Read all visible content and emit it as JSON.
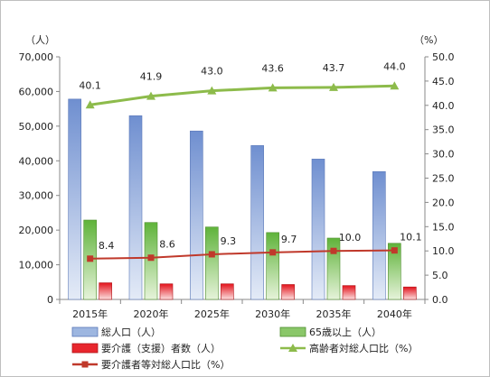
{
  "chart_data": {
    "type": "bar",
    "categories": [
      "2015年",
      "2020年",
      "2025年",
      "2030年",
      "2035年",
      "2040年"
    ],
    "y_left": {
      "unit": "（人）",
      "ylim": [
        0,
        70000
      ],
      "ticks": [
        "0",
        "10,000",
        "20,000",
        "30,000",
        "40,000",
        "50,000",
        "60,000",
        "70,000"
      ]
    },
    "y_right": {
      "unit": "（%）",
      "ylim": [
        0,
        50
      ],
      "ticks": [
        "0.0",
        "5.0",
        "10.0",
        "15.0",
        "20.0",
        "25.0",
        "30.0",
        "35.0",
        "40.0",
        "45.0",
        "50.0"
      ]
    },
    "series": [
      {
        "name": "総人口（人）",
        "kind": "bar",
        "axis": "left",
        "color": "#8eaadb",
        "values": [
          57800,
          53000,
          48600,
          44400,
          40500,
          36900
        ]
      },
      {
        "name": "65歳以上（人）",
        "kind": "bar",
        "axis": "left",
        "color": "#7fc45a",
        "values": [
          22900,
          22200,
          20900,
          19300,
          17700,
          16200
        ]
      },
      {
        "name": "要介護（支援）者数（人）",
        "kind": "bar",
        "axis": "left",
        "color": "#e8262d",
        "values": [
          4800,
          4500,
          4500,
          4300,
          4000,
          3600
        ]
      },
      {
        "name": "高齢者対総人口比（%）",
        "kind": "line",
        "axis": "right",
        "color": "#8dbb4b",
        "marker": "triangle",
        "values": [
          40.1,
          41.9,
          43.0,
          43.6,
          43.7,
          44.0
        ],
        "labels": [
          "40.1",
          "41.9",
          "43.0",
          "43.6",
          "43.7",
          "44.0"
        ]
      },
      {
        "name": "要介護者等対総人口比（%）",
        "kind": "line",
        "axis": "right",
        "color": "#c0392b",
        "marker": "square",
        "values": [
          8.4,
          8.6,
          9.3,
          9.7,
          10.0,
          10.1
        ],
        "labels": [
          "8.4",
          "8.6",
          "9.3",
          "9.7",
          "10.0",
          "10.1"
        ]
      }
    ]
  }
}
